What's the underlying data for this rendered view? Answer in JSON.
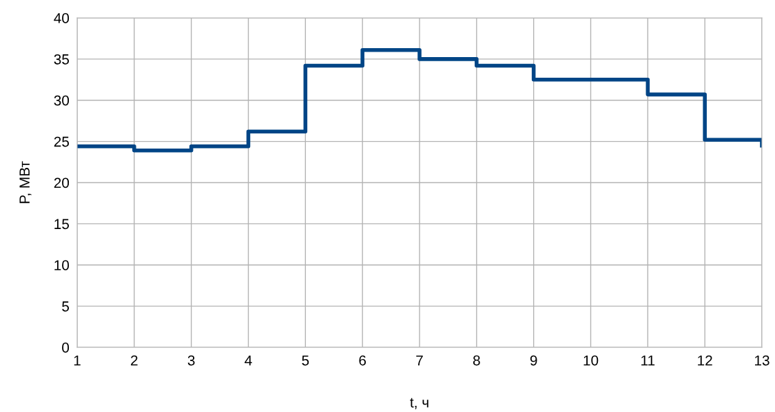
{
  "chart_data": {
    "type": "step",
    "xlabel": "t, ч",
    "ylabel": "P, МВт",
    "x": [
      1,
      2,
      3,
      4,
      5,
      6,
      7,
      8,
      9,
      10,
      11,
      12,
      13
    ],
    "series": [
      {
        "color": "#004586",
        "values": [
          24.4,
          23.9,
          24.4,
          26.2,
          34.2,
          36.1,
          35.0,
          34.2,
          32.5,
          32.5,
          30.7,
          25.2,
          24.5
        ]
      }
    ],
    "xlim": [
      1,
      13
    ],
    "xticks": [
      1,
      2,
      3,
      4,
      5,
      6,
      7,
      8,
      9,
      10,
      11,
      12,
      13
    ],
    "ylim": [
      0,
      40
    ],
    "yticks": [
      0,
      5,
      10,
      15,
      20,
      25,
      30,
      35,
      40
    ],
    "grid": true,
    "legend": false,
    "marker": "none",
    "line_style": "solid"
  }
}
